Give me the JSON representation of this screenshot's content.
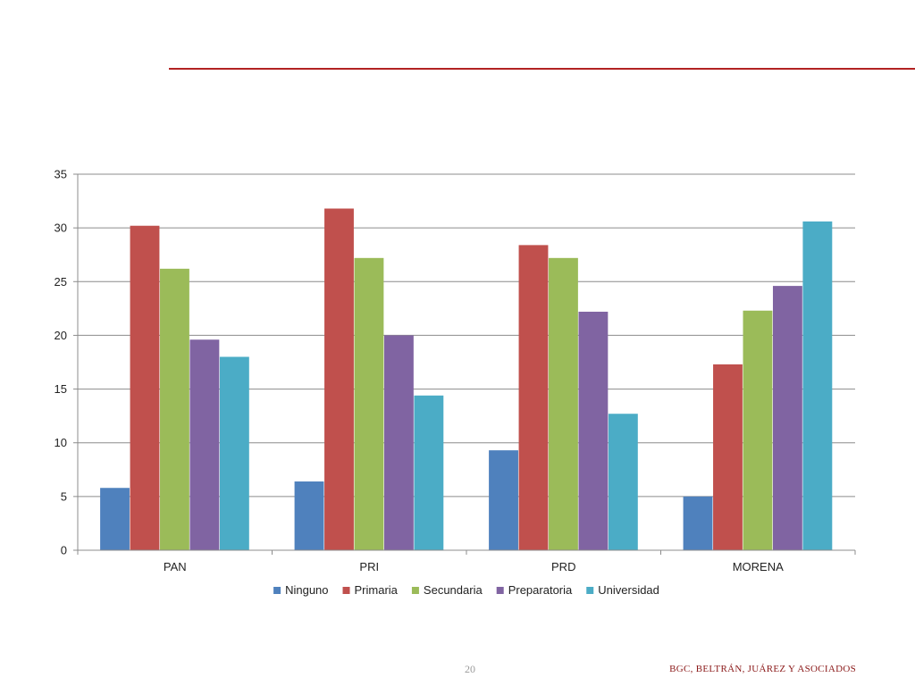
{
  "footer": {
    "page_number": "20",
    "credit": "BGC, BELTRÁN, JUÁREZ Y ASOCIADOS"
  },
  "colors": {
    "accent_rule": "#b22222",
    "footer_text": "#8b1a1a"
  },
  "chart_data": {
    "type": "bar",
    "title": "",
    "xlabel": "",
    "ylabel": "",
    "categories": [
      "PAN",
      "PRI",
      "PRD",
      "MORENA"
    ],
    "ylim": [
      0,
      35
    ],
    "yticks": [
      0,
      5,
      10,
      15,
      20,
      25,
      30,
      35
    ],
    "grid": true,
    "legend_position": "bottom",
    "series": [
      {
        "name": "Ninguno",
        "color": "#4f81bd",
        "values": [
          5.8,
          6.4,
          9.3,
          5.0
        ]
      },
      {
        "name": "Primaria",
        "color": "#c0504d",
        "values": [
          30.2,
          31.8,
          28.4,
          17.3
        ]
      },
      {
        "name": "Secundaria",
        "color": "#9bbb59",
        "values": [
          26.2,
          27.2,
          27.2,
          22.3
        ]
      },
      {
        "name": "Preparatoria",
        "color": "#8064a2",
        "values": [
          19.6,
          20.0,
          22.2,
          24.6
        ]
      },
      {
        "name": "Universidad",
        "color": "#4bacc6",
        "values": [
          18.0,
          14.4,
          12.7,
          30.6
        ]
      }
    ]
  }
}
